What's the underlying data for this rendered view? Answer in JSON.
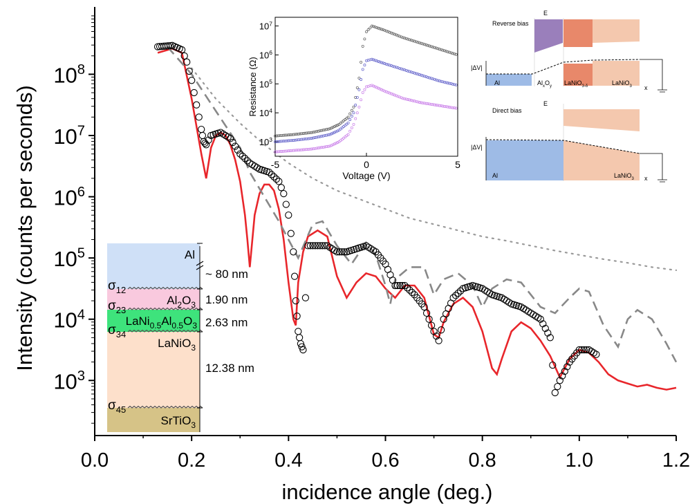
{
  "chart_data": {
    "type": "scatter",
    "xlabel": "incidence angle (deg.)",
    "ylabel": "Intensity (counts per seconds)",
    "xlim": [
      0.0,
      1.2
    ],
    "ylim_log10": [
      2.1,
      9.1
    ],
    "y_scale": "log",
    "x_ticks": [
      "0.0",
      "0.2",
      "0.4",
      "0.6",
      "0.8",
      "1.0",
      "1.2"
    ],
    "y_ticks": [
      {
        "base": "10",
        "exp": "3",
        "log": 3
      },
      {
        "base": "10",
        "exp": "4",
        "log": 4
      },
      {
        "base": "10",
        "exp": "5",
        "log": 5
      },
      {
        "base": "10",
        "exp": "6",
        "log": 6
      },
      {
        "base": "10",
        "exp": "7",
        "log": 7
      },
      {
        "base": "10",
        "exp": "8",
        "log": 8
      }
    ],
    "series": [
      {
        "style": "open-circles",
        "color": "#000000",
        "x": [
          0.13,
          0.16,
          0.18,
          0.19,
          0.2,
          0.21,
          0.22,
          0.225,
          0.23,
          0.24,
          0.26,
          0.28,
          0.3,
          0.32,
          0.34,
          0.36,
          0.38,
          0.39,
          0.4,
          0.41,
          0.415,
          0.42,
          0.425,
          0.43,
          0.44,
          0.46,
          0.48,
          0.5,
          0.52,
          0.54,
          0.56,
          0.58,
          0.6,
          0.62,
          0.64,
          0.66,
          0.68,
          0.7,
          0.71,
          0.72,
          0.74,
          0.76,
          0.78,
          0.8,
          0.82,
          0.84,
          0.86,
          0.88,
          0.9,
          0.92,
          0.94,
          0.95,
          0.96,
          0.98,
          1.0,
          1.02,
          1.04
        ],
        "log10_y": [
          8.45,
          8.47,
          8.4,
          8.2,
          7.9,
          7.5,
          7.1,
          6.9,
          6.85,
          7.0,
          7.05,
          6.95,
          6.7,
          6.55,
          6.45,
          6.4,
          6.25,
          6.05,
          5.7,
          5.1,
          4.3,
          3.8,
          3.6,
          3.5,
          5.2,
          5.2,
          5.2,
          5.1,
          5.1,
          5.15,
          5.2,
          5.1,
          4.9,
          4.55,
          4.55,
          4.4,
          4.2,
          3.8,
          3.65,
          4.0,
          4.35,
          4.5,
          4.55,
          4.5,
          4.4,
          4.35,
          4.25,
          4.2,
          4.1,
          4.0,
          3.7,
          2.8,
          3.0,
          3.3,
          3.5,
          3.5,
          3.4
        ]
      },
      {
        "style": "solid",
        "color": "#e8262b",
        "x": [
          0.13,
          0.16,
          0.18,
          0.2,
          0.21,
          0.22,
          0.23,
          0.24,
          0.25,
          0.26,
          0.27,
          0.28,
          0.29,
          0.3,
          0.31,
          0.315,
          0.32,
          0.33,
          0.34,
          0.35,
          0.36,
          0.37,
          0.38,
          0.39,
          0.4,
          0.41,
          0.415,
          0.42,
          0.43,
          0.44,
          0.46,
          0.48,
          0.5,
          0.52,
          0.54,
          0.56,
          0.58,
          0.6,
          0.62,
          0.64,
          0.66,
          0.68,
          0.7,
          0.71,
          0.72,
          0.74,
          0.76,
          0.78,
          0.8,
          0.82,
          0.83,
          0.84,
          0.86,
          0.88,
          0.9,
          0.92,
          0.94,
          0.96,
          0.98,
          1.0,
          1.02,
          1.04,
          1.06,
          1.08,
          1.1,
          1.12,
          1.14,
          1.16,
          1.18,
          1.2
        ],
        "log10_y": [
          8.35,
          8.42,
          8.35,
          7.6,
          7.15,
          6.7,
          6.3,
          6.8,
          7.0,
          7.05,
          7.0,
          6.85,
          6.6,
          6.25,
          5.7,
          5.3,
          4.85,
          5.7,
          6.05,
          6.2,
          6.2,
          6.1,
          5.8,
          5.3,
          4.6,
          4.0,
          3.9,
          4.6,
          5.1,
          5.35,
          5.45,
          5.35,
          4.7,
          4.35,
          4.6,
          4.75,
          4.7,
          4.5,
          4.35,
          4.55,
          4.55,
          4.35,
          3.75,
          3.7,
          3.95,
          4.25,
          4.35,
          4.2,
          3.8,
          3.2,
          3.1,
          3.35,
          3.8,
          3.95,
          3.85,
          3.65,
          3.4,
          3.05,
          3.35,
          3.5,
          3.45,
          3.3,
          3.1,
          3.0,
          2.95,
          2.9,
          2.93,
          2.88,
          2.85,
          2.88
        ]
      },
      {
        "style": "dashed",
        "color": "#888888",
        "x": [
          0.15,
          0.2,
          0.25,
          0.3,
          0.32,
          0.35,
          0.38,
          0.4,
          0.42,
          0.45,
          0.47,
          0.5,
          0.53,
          0.56,
          0.58,
          0.6,
          0.61,
          0.62,
          0.65,
          0.68,
          0.7,
          0.72,
          0.75,
          0.78,
          0.8,
          0.82,
          0.85,
          0.88,
          0.9,
          0.92,
          0.95,
          0.98,
          1.0,
          1.02,
          1.05,
          1.08,
          1.1,
          1.12,
          1.15,
          1.18,
          1.2
        ],
        "log10_y": [
          8.45,
          8.0,
          7.4,
          6.8,
          6.4,
          6.0,
          5.6,
          5.3,
          5.0,
          5.55,
          5.6,
          5.2,
          4.9,
          5.25,
          5.05,
          4.55,
          4.25,
          4.65,
          4.85,
          4.85,
          4.4,
          4.65,
          4.75,
          4.55,
          4.2,
          4.5,
          4.65,
          4.6,
          4.4,
          4.2,
          4.1,
          4.35,
          4.5,
          4.45,
          3.9,
          3.55,
          4.0,
          4.15,
          4.0,
          3.6,
          3.3
        ]
      },
      {
        "style": "dotted",
        "color": "#999999",
        "x": [
          0.2,
          0.25,
          0.3,
          0.35,
          0.4,
          0.45,
          0.5,
          0.55,
          0.6,
          0.65,
          0.7,
          0.75,
          0.8,
          0.85,
          0.9,
          0.95,
          1.0,
          1.05,
          1.1,
          1.15,
          1.2
        ],
        "log10_y": [
          8.1,
          7.6,
          7.2,
          6.85,
          6.55,
          6.3,
          6.1,
          5.95,
          5.8,
          5.65,
          5.55,
          5.45,
          5.35,
          5.28,
          5.2,
          5.12,
          5.05,
          4.98,
          4.92,
          4.85,
          4.8
        ]
      }
    ],
    "stack": {
      "layers": [
        {
          "name": "Al",
          "color": "#cfe0f7"
        },
        {
          "name": "Al2O3",
          "color": "#f9c9de"
        },
        {
          "name": "LaNi0.5Al0.5O3",
          "color": "#3ee37c"
        },
        {
          "name": "LaNiO3",
          "color": "#fde0cb"
        },
        {
          "name": "SrTiO3",
          "color": "#d6c387"
        }
      ],
      "sigmas": [
        "12",
        "23",
        "34",
        "45"
      ],
      "thicknesses": [
        "~ 80 nm",
        "1.90 nm",
        "2.63 nm",
        "12.38 nm"
      ]
    },
    "inset": {
      "xlabel": "Voltage (V)",
      "ylabel": "Resistance (Ω)",
      "x_ticks": [
        "-5",
        "0",
        "5"
      ],
      "y_ticks": [
        {
          "base": "10",
          "exp": "3",
          "log": 3
        },
        {
          "base": "10",
          "exp": "4",
          "log": 4
        },
        {
          "base": "10",
          "exp": "5",
          "log": 5
        },
        {
          "base": "10",
          "exp": "6",
          "log": 6
        },
        {
          "base": "10",
          "exp": "7",
          "log": 7
        }
      ],
      "xlim": [
        -5,
        5
      ],
      "ylim_log10": [
        2.5,
        7.3
      ],
      "series": [
        {
          "color": "#555555",
          "x": [
            -5,
            -4,
            -3,
            -2,
            -1.5,
            -1,
            -0.7,
            -0.4,
            -0.2,
            0,
            0.3,
            1,
            2,
            3,
            4,
            5
          ],
          "log10_y": [
            3.2,
            3.25,
            3.32,
            3.45,
            3.6,
            3.85,
            4.2,
            5.2,
            6.3,
            6.8,
            7.0,
            6.85,
            6.6,
            6.4,
            6.2,
            6.0
          ]
        },
        {
          "color": "#5b5bc8",
          "x": [
            -5,
            -4,
            -3,
            -2,
            -1.5,
            -1,
            -0.7,
            -0.4,
            -0.2,
            0,
            0.3,
            1,
            2,
            3,
            4,
            5
          ],
          "log10_y": [
            3.0,
            3.05,
            3.12,
            3.25,
            3.4,
            3.65,
            4.0,
            4.8,
            5.5,
            5.8,
            5.85,
            5.7,
            5.5,
            5.3,
            5.1,
            4.95
          ]
        },
        {
          "color": "#c779e8",
          "x": [
            -5,
            -4,
            -3,
            -2,
            -1.5,
            -1,
            -0.7,
            -0.4,
            -0.2,
            0,
            0.3,
            1,
            2,
            3,
            4,
            5
          ],
          "log10_y": [
            2.65,
            2.7,
            2.75,
            2.85,
            3.0,
            3.25,
            3.6,
            4.2,
            4.7,
            4.9,
            4.95,
            4.75,
            4.5,
            4.35,
            4.25,
            4.15
          ]
        }
      ]
    },
    "bands": {
      "reverse": {
        "title": "Reverse bias",
        "e": "E",
        "dv": "|ΔV|",
        "x": "x",
        "labels": [
          "Al",
          "AlxOy",
          "LaNiO3-δ",
          "LaNiO3"
        ]
      },
      "direct": {
        "title": "Direct bias",
        "e": "E",
        "dv": "|ΔV|",
        "x": "x",
        "labels": [
          "Al",
          "LaNiO3"
        ]
      }
    }
  }
}
